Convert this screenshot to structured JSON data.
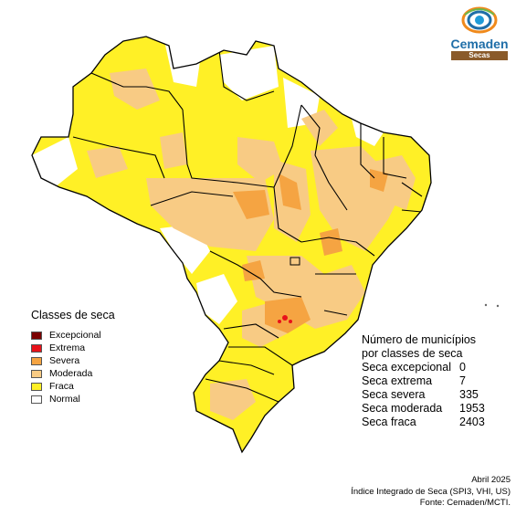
{
  "legend": {
    "title": "Classes de seca",
    "items": [
      {
        "label": "Excepcional",
        "color": "#7a0000"
      },
      {
        "label": "Extrema",
        "color": "#e8121a"
      },
      {
        "label": "Severa",
        "color": "#f5a442"
      },
      {
        "label": "Moderada",
        "color": "#f8cb84"
      },
      {
        "label": "Fraca",
        "color": "#fff026"
      },
      {
        "label": "Normal",
        "color": "#ffffff"
      }
    ]
  },
  "stats": {
    "title_line1": "Número de municípios",
    "title_line2": "por classes de seca",
    "rows": [
      {
        "label": "Seca excepcional",
        "value": "0"
      },
      {
        "label": "Seca extrema",
        "value": "7"
      },
      {
        "label": "Seca severa",
        "value": "335"
      },
      {
        "label": "Seca moderada",
        "value": "1953"
      },
      {
        "label": "Seca fraca",
        "value": "2403"
      }
    ]
  },
  "logo": {
    "name": "Cemaden",
    "sub": "Secas"
  },
  "footer": {
    "date": "Abril 2025",
    "index": "Índice Integrado de Seca (SPI3, VHI, US)",
    "source": "Fonte: Cemaden/MCTI."
  },
  "map": {
    "region": "Brasil"
  }
}
